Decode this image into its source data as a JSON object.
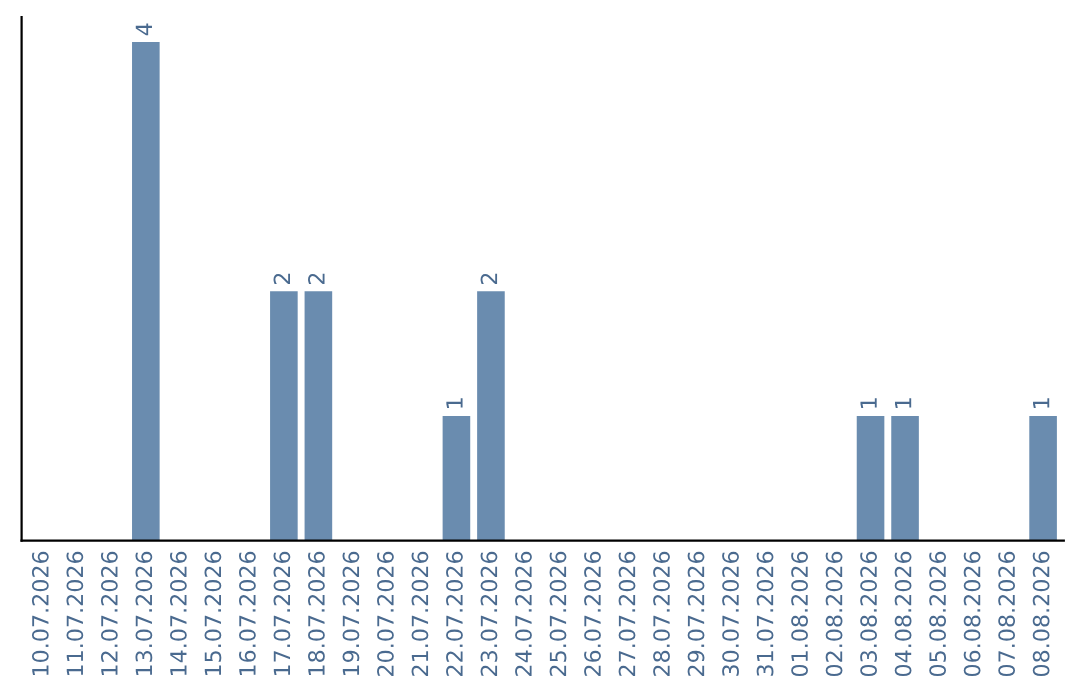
{
  "chart_data": {
    "type": "bar",
    "categories": [
      "10.07.2026",
      "11.07.2026",
      "12.07.2026",
      "13.07.2026",
      "14.07.2026",
      "15.07.2026",
      "16.07.2026",
      "17.07.2026",
      "18.07.2026",
      "19.07.2026",
      "20.07.2026",
      "21.07.2026",
      "22.07.2026",
      "23.07.2026",
      "24.07.2026",
      "25.07.2026",
      "26.07.2026",
      "27.07.2026",
      "28.07.2026",
      "29.07.2026",
      "30.07.2026",
      "31.07.2026",
      "01.08.2026",
      "02.08.2026",
      "03.08.2026",
      "04.08.2026",
      "05.08.2026",
      "06.08.2026",
      "07.08.2026",
      "08.08.2026"
    ],
    "values": [
      0,
      0,
      0,
      4,
      0,
      0,
      0,
      2,
      2,
      0,
      0,
      0,
      1,
      2,
      0,
      0,
      0,
      0,
      0,
      0,
      0,
      0,
      0,
      0,
      1,
      1,
      0,
      0,
      0,
      1
    ],
    "value_labels": [
      null,
      null,
      null,
      "4",
      null,
      null,
      null,
      "2",
      "2",
      null,
      null,
      null,
      "1",
      "2",
      null,
      null,
      null,
      null,
      null,
      null,
      null,
      null,
      null,
      null,
      "1",
      "1",
      null,
      null,
      null,
      "1"
    ],
    "color": "#6a8caf",
    "grid": false,
    "legend": false,
    "tick_labels": "x"
  }
}
